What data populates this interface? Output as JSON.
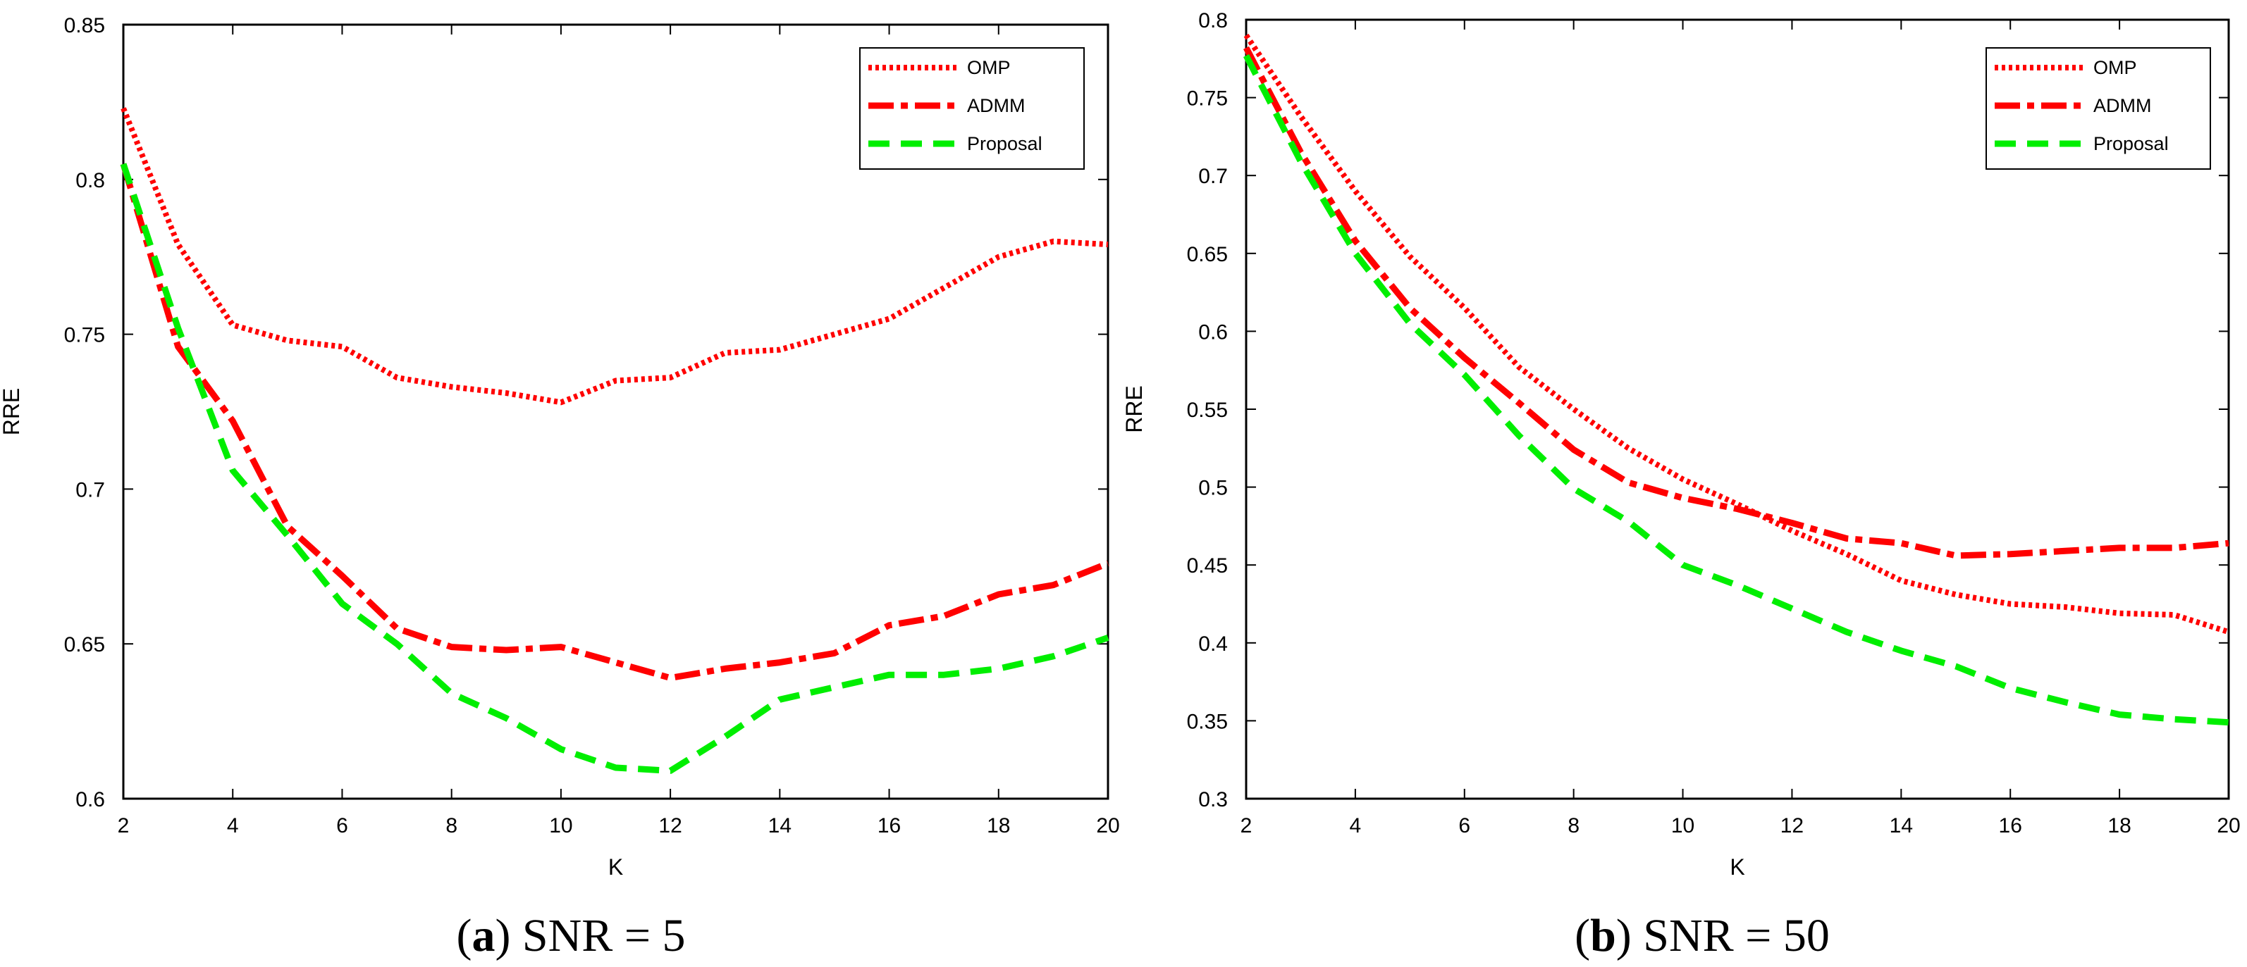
{
  "chart_data": [
    {
      "type": "line",
      "caption_letter": "a",
      "caption_text": " SNR = 5",
      "xlabel": "K",
      "ylabel": "RRE",
      "xlim": [
        2,
        20
      ],
      "ylim": [
        0.6,
        0.85
      ],
      "xticks": [
        2,
        4,
        6,
        8,
        10,
        12,
        14,
        16,
        18,
        20
      ],
      "yticks": [
        0.6,
        0.65,
        0.7,
        0.75,
        0.8,
        0.85
      ],
      "ytick_labels": [
        "0.6",
        "0.65",
        "0.7",
        "0.75",
        "0.8",
        "0.85"
      ],
      "grid": false,
      "legend_position": "top-right",
      "x": [
        2,
        3,
        4,
        5,
        6,
        7,
        8,
        9,
        10,
        11,
        12,
        13,
        14,
        15,
        16,
        17,
        18,
        19,
        20
      ],
      "series": [
        {
          "name": "OMP",
          "color": "#ff0000",
          "style": "dotted",
          "values": [
            0.823,
            0.779,
            0.753,
            0.748,
            0.746,
            0.736,
            0.733,
            0.731,
            0.728,
            0.735,
            0.736,
            0.744,
            0.745,
            0.75,
            0.755,
            0.765,
            0.775,
            0.78,
            0.779
          ]
        },
        {
          "name": "ADMM",
          "color": "#ff0000",
          "style": "dashdot",
          "values": [
            0.805,
            0.746,
            0.722,
            0.688,
            0.672,
            0.655,
            0.649,
            0.648,
            0.649,
            0.644,
            0.639,
            0.642,
            0.644,
            0.647,
            0.656,
            0.659,
            0.666,
            0.669,
            0.676
          ]
        },
        {
          "name": "Proposal",
          "color": "#00ee00",
          "style": "dashed",
          "values": [
            0.805,
            0.752,
            0.706,
            0.685,
            0.663,
            0.65,
            0.634,
            0.626,
            0.616,
            0.61,
            0.609,
            0.62,
            0.632,
            0.636,
            0.64,
            0.64,
            0.642,
            0.646,
            0.652
          ]
        }
      ]
    },
    {
      "type": "line",
      "caption_letter": "b",
      "caption_text": " SNR = 50",
      "xlabel": "K",
      "ylabel": "RRE",
      "xlim": [
        2,
        20
      ],
      "ylim": [
        0.3,
        0.8
      ],
      "xticks": [
        2,
        4,
        6,
        8,
        10,
        12,
        14,
        16,
        18,
        20
      ],
      "yticks": [
        0.3,
        0.35,
        0.4,
        0.45,
        0.5,
        0.55,
        0.6,
        0.65,
        0.7,
        0.75,
        0.8
      ],
      "ytick_labels": [
        "0.3",
        "0.35",
        "0.4",
        "0.45",
        "0.5",
        "0.55",
        "0.6",
        "0.65",
        "0.7",
        "0.75",
        "0.8"
      ],
      "grid": false,
      "legend_position": "top-right",
      "x": [
        2,
        3,
        4,
        5,
        6,
        7,
        8,
        9,
        10,
        11,
        12,
        13,
        14,
        15,
        16,
        17,
        18,
        19,
        20
      ],
      "series": [
        {
          "name": "OMP",
          "color": "#ff0000",
          "style": "dotted",
          "values": [
            0.79,
            0.738,
            0.69,
            0.648,
            0.615,
            0.577,
            0.55,
            0.525,
            0.505,
            0.489,
            0.472,
            0.457,
            0.44,
            0.431,
            0.425,
            0.423,
            0.419,
            0.418,
            0.407
          ]
        },
        {
          "name": "ADMM",
          "color": "#ff0000",
          "style": "dashdot",
          "values": [
            0.782,
            0.715,
            0.658,
            0.615,
            0.583,
            0.554,
            0.524,
            0.503,
            0.493,
            0.486,
            0.477,
            0.467,
            0.464,
            0.456,
            0.457,
            0.459,
            0.461,
            0.461,
            0.464
          ]
        },
        {
          "name": "Proposal",
          "color": "#00ee00",
          "style": "dashed",
          "values": [
            0.777,
            0.709,
            0.65,
            0.605,
            0.572,
            0.533,
            0.499,
            0.478,
            0.45,
            0.437,
            0.422,
            0.407,
            0.395,
            0.385,
            0.371,
            0.362,
            0.354,
            0.351,
            0.349
          ]
        }
      ]
    }
  ]
}
